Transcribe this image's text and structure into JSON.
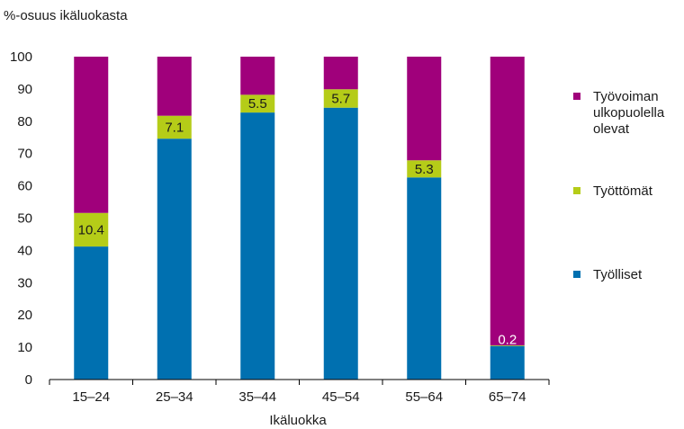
{
  "chart_data": {
    "type": "bar",
    "stacked": true,
    "ylabel": "%-osuus ikäluokasta",
    "xlabel": "Ikäluokka",
    "ylim": [
      0,
      100
    ],
    "yticks": [
      0,
      10,
      20,
      30,
      40,
      50,
      60,
      70,
      80,
      90,
      100
    ],
    "grid": false,
    "legend_position": "right",
    "categories": [
      "15–24",
      "25–34",
      "35–44",
      "45–54",
      "55–64",
      "65–74"
    ],
    "series": [
      {
        "name": "Työlliset",
        "color": "#0070b0",
        "values": [
          41.2,
          74.6,
          82.7,
          84.2,
          62.6,
          10.4
        ]
      },
      {
        "name": "Työttömät",
        "color": "#b5cc18",
        "values": [
          10.4,
          7.1,
          5.5,
          5.7,
          5.3,
          0.2
        ]
      },
      {
        "name": "Työvoiman ulkopuolella olevat",
        "color": "#a0007b",
        "values": [
          48.4,
          18.3,
          11.8,
          10.1,
          32.1,
          89.4
        ]
      }
    ],
    "data_labels": [
      {
        "series": "Työttömät",
        "category": "15–24",
        "text": "10.4"
      },
      {
        "series": "Työttömät",
        "category": "25–34",
        "text": "7.1"
      },
      {
        "series": "Työttömät",
        "category": "35–44",
        "text": "5.5"
      },
      {
        "series": "Työttömät",
        "category": "45–54",
        "text": "5.7"
      },
      {
        "series": "Työttömät",
        "category": "55–64",
        "text": "5.3"
      },
      {
        "series": "Työttömät",
        "category": "65–74",
        "text": "0.2"
      }
    ],
    "legend": [
      {
        "series": "Työvoiman ulkopuolella olevat",
        "lines": [
          "Työvoiman",
          "ulkopuolella",
          "olevat"
        ]
      },
      {
        "series": "Työttömät",
        "lines": [
          "Työttömät"
        ]
      },
      {
        "series": "Työlliset",
        "lines": [
          "Työlliset"
        ]
      }
    ]
  }
}
